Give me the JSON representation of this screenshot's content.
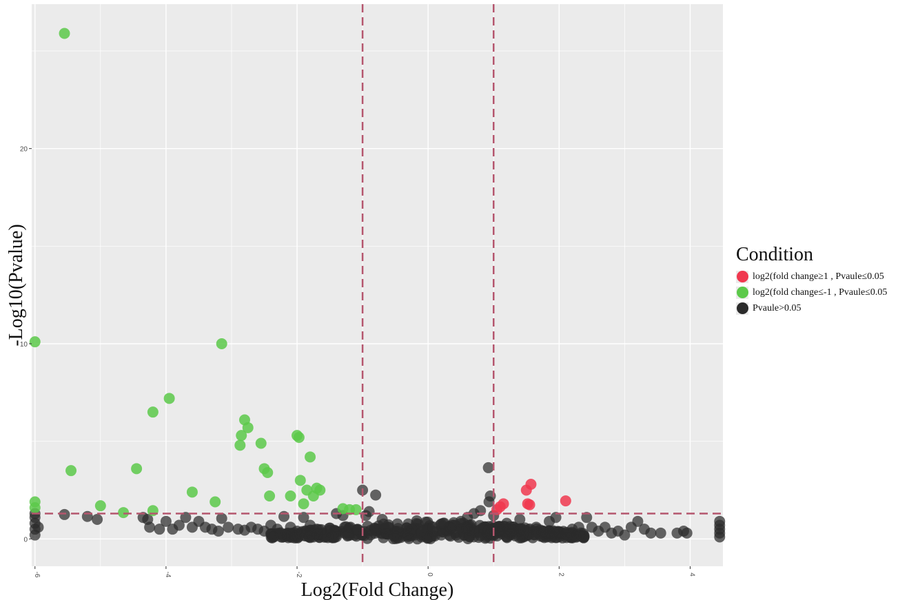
{
  "chart_data": {
    "type": "scatter",
    "title": "",
    "xlabel": "Log2(Fold Change)",
    "ylabel": "-Log10(Pvalue)",
    "xlim": [
      -6.05,
      4.5
    ],
    "ylim": [
      -1.4,
      27.4
    ],
    "x_ticks": [
      {
        "value": -6,
        "label": "-6"
      },
      {
        "value": -4,
        "label": "-4"
      },
      {
        "value": -2,
        "label": "-2"
      },
      {
        "value": 0,
        "label": "0"
      },
      {
        "value": 2,
        "label": "2"
      },
      {
        "value": 4,
        "label": "4"
      }
    ],
    "y_ticks": [
      {
        "value": 0,
        "label": "0"
      },
      {
        "value": 10,
        "label": "10"
      },
      {
        "value": 20,
        "label": "20"
      }
    ],
    "grid": true,
    "thresholds": {
      "x": [
        -1,
        1
      ],
      "y": 1.3
    },
    "colors": {
      "panel": "#ebebeb",
      "grid": "#ffffff",
      "threshold": "#b5566e",
      "up": "#f0384f",
      "down": "#5cc94a",
      "ns": "#2b2b2b"
    },
    "legend": {
      "title": "Condition",
      "position": "right",
      "entries": [
        {
          "key": "up",
          "label": "log2(fold change≥1 , Pvaule≤0.05"
        },
        {
          "key": "down",
          "label": "log2(fold change≤-1 , Pvaule≤0.05"
        },
        {
          "key": "ns",
          "label": "Pvaule>0.05"
        }
      ]
    },
    "series": [
      {
        "key": "down",
        "points": [
          [
            -5.55,
            25.9
          ],
          [
            -6.0,
            10.1
          ],
          [
            -5.45,
            3.5
          ],
          [
            -5.0,
            1.7
          ],
          [
            -4.65,
            1.35
          ],
          [
            -4.45,
            3.6
          ],
          [
            -4.2,
            6.5
          ],
          [
            -4.2,
            1.45
          ],
          [
            -3.95,
            7.2
          ],
          [
            -3.6,
            2.4
          ],
          [
            -3.15,
            10.0
          ],
          [
            -3.25,
            1.9
          ],
          [
            -2.8,
            6.1
          ],
          [
            -2.75,
            5.7
          ],
          [
            -2.85,
            5.3
          ],
          [
            -2.87,
            4.8
          ],
          [
            -2.55,
            4.9
          ],
          [
            -2.5,
            3.6
          ],
          [
            -2.45,
            3.4
          ],
          [
            -2.42,
            2.2
          ],
          [
            -2.1,
            2.2
          ],
          [
            -2.0,
            5.3
          ],
          [
            -1.97,
            5.2
          ],
          [
            -1.95,
            3.0
          ],
          [
            -1.9,
            1.8
          ],
          [
            -1.85,
            2.5
          ],
          [
            -1.8,
            4.2
          ],
          [
            -1.75,
            2.2
          ],
          [
            -1.7,
            2.6
          ],
          [
            -1.65,
            2.5
          ],
          [
            -1.3,
            1.55
          ],
          [
            -1.2,
            1.5
          ],
          [
            -1.1,
            1.5
          ],
          [
            -6.0,
            1.9
          ],
          [
            -6.0,
            1.6
          ]
        ]
      },
      {
        "key": "up",
        "points": [
          [
            1.05,
            1.5
          ],
          [
            1.1,
            1.65
          ],
          [
            1.15,
            1.8
          ],
          [
            1.5,
            2.5
          ],
          [
            1.57,
            2.8
          ],
          [
            1.55,
            1.75
          ],
          [
            1.52,
            1.8
          ],
          [
            2.1,
            1.95
          ]
        ]
      },
      {
        "key": "ns",
        "points": [
          [
            -5.55,
            1.25
          ],
          [
            -5.2,
            1.15
          ],
          [
            -5.05,
            1.0
          ],
          [
            -4.35,
            1.1
          ],
          [
            -4.28,
            1.0
          ],
          [
            -4.25,
            0.6
          ],
          [
            -4.1,
            0.5
          ],
          [
            -3.9,
            0.5
          ],
          [
            -4.0,
            0.9
          ],
          [
            -3.8,
            0.7
          ],
          [
            -3.7,
            1.1
          ],
          [
            -3.6,
            0.6
          ],
          [
            -3.5,
            0.9
          ],
          [
            -3.4,
            0.6
          ],
          [
            -3.3,
            0.5
          ],
          [
            -3.15,
            1.05
          ],
          [
            -3.2,
            0.4
          ],
          [
            -3.05,
            0.6
          ],
          [
            -2.9,
            0.5
          ],
          [
            -2.8,
            0.45
          ],
          [
            -2.7,
            0.6
          ],
          [
            -2.6,
            0.5
          ],
          [
            -2.5,
            0.4
          ],
          [
            -2.4,
            0.7
          ],
          [
            -2.3,
            0.5
          ],
          [
            -2.2,
            1.15
          ],
          [
            -2.1,
            0.6
          ],
          [
            -2.0,
            0.4
          ],
          [
            -1.9,
            1.1
          ],
          [
            -1.8,
            0.7
          ],
          [
            -1.7,
            0.5
          ],
          [
            -1.6,
            0.3
          ],
          [
            -1.5,
            0.45
          ],
          [
            -1.4,
            1.3
          ],
          [
            -1.3,
            1.2
          ],
          [
            -1.2,
            0.3
          ],
          [
            -1.0,
            2.5
          ],
          [
            -0.8,
            2.25
          ],
          [
            -0.9,
            1.4
          ],
          [
            -0.95,
            1.2
          ],
          [
            -0.7,
            1.0
          ],
          [
            -0.6,
            0.6
          ],
          [
            -0.5,
            0.4
          ],
          [
            -0.4,
            0.3
          ],
          [
            -0.3,
            0.25
          ],
          [
            -0.2,
            0.2
          ],
          [
            -0.1,
            0.1
          ],
          [
            0.0,
            0.05
          ],
          [
            0.1,
            0.15
          ],
          [
            0.2,
            0.2
          ],
          [
            0.3,
            0.4
          ],
          [
            0.4,
            0.7
          ],
          [
            0.5,
            0.9
          ],
          [
            0.6,
            1.1
          ],
          [
            0.7,
            1.3
          ],
          [
            0.8,
            1.45
          ],
          [
            0.92,
            3.65
          ],
          [
            0.95,
            2.2
          ],
          [
            0.93,
            1.9
          ],
          [
            1.0,
            1.2
          ],
          [
            1.2,
            0.8
          ],
          [
            1.3,
            0.4
          ],
          [
            1.4,
            1.0
          ],
          [
            1.65,
            0.6
          ],
          [
            1.85,
            0.9
          ],
          [
            1.95,
            1.1
          ],
          [
            2.0,
            0.3
          ],
          [
            2.2,
            0.5
          ],
          [
            2.3,
            0.6
          ],
          [
            2.42,
            1.1
          ],
          [
            2.5,
            0.6
          ],
          [
            2.6,
            0.4
          ],
          [
            2.7,
            0.6
          ],
          [
            2.8,
            0.3
          ],
          [
            2.9,
            0.4
          ],
          [
            3.0,
            0.2
          ],
          [
            3.1,
            0.6
          ],
          [
            3.2,
            0.9
          ],
          [
            3.3,
            0.5
          ],
          [
            3.4,
            0.3
          ],
          [
            3.55,
            0.3
          ],
          [
            3.8,
            0.3
          ],
          [
            3.9,
            0.4
          ],
          [
            3.95,
            0.3
          ],
          [
            4.45,
            0.7
          ],
          [
            4.45,
            0.5
          ],
          [
            4.45,
            0.3
          ],
          [
            4.45,
            0.1
          ],
          [
            4.45,
            0.9
          ],
          [
            -6.0,
            0.2
          ],
          [
            -6.0,
            0.5
          ],
          [
            -6.0,
            0.8
          ],
          [
            -6.0,
            1.1
          ],
          [
            -6.0,
            1.3
          ],
          [
            -5.95,
            0.6
          ]
        ]
      }
    ]
  }
}
